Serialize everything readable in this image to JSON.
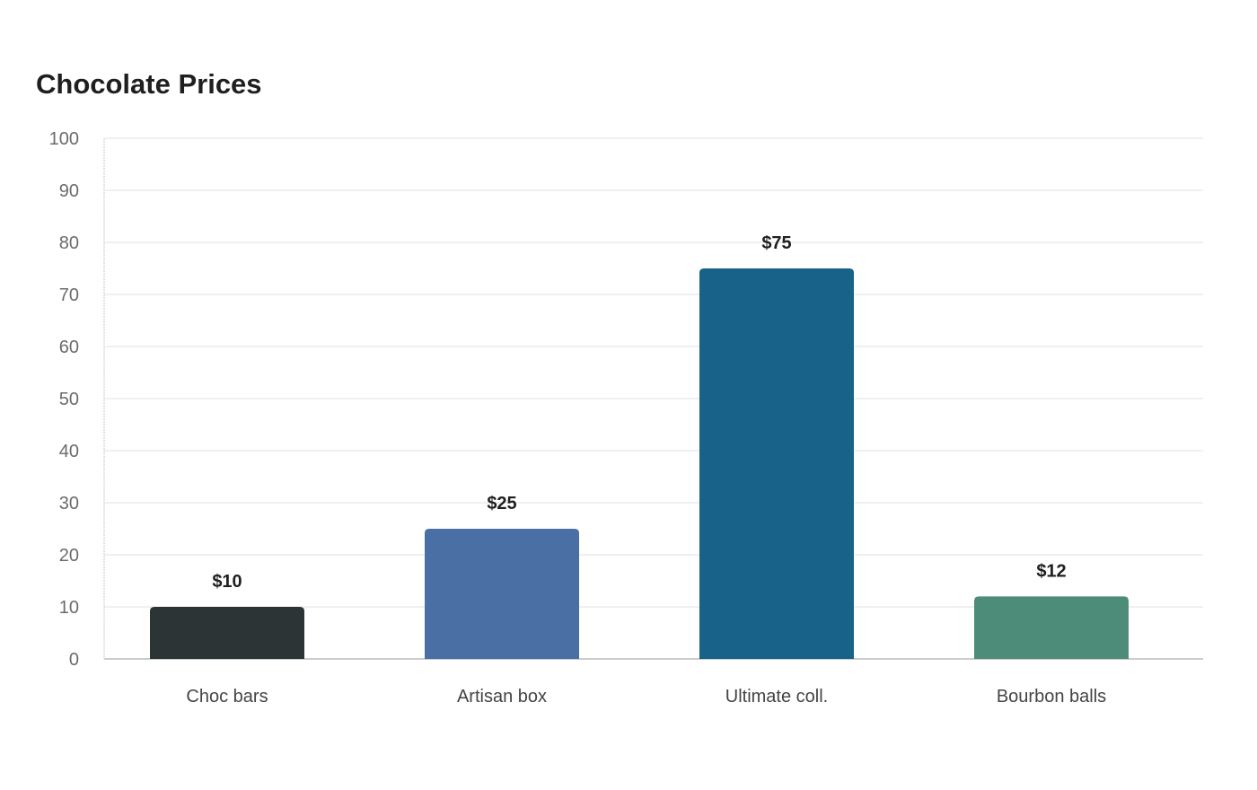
{
  "chart_data": {
    "type": "bar",
    "title": "Chocolate Prices",
    "xlabel": "",
    "ylabel": "",
    "categories": [
      "Choc bars",
      "Artisan box",
      "Ultimate coll.",
      "Bourbon balls"
    ],
    "values": [
      10,
      25,
      75,
      12
    ],
    "value_labels": [
      "$10",
      "$25",
      "$75",
      "$12"
    ],
    "colors": [
      "#2d3436",
      "#4a6fa5",
      "#186289",
      "#4e8c7a"
    ],
    "ylim": [
      0,
      100
    ],
    "yticks": [
      0,
      10,
      20,
      30,
      40,
      50,
      60,
      70,
      80,
      90,
      100
    ],
    "grid": true,
    "legend": "none"
  }
}
